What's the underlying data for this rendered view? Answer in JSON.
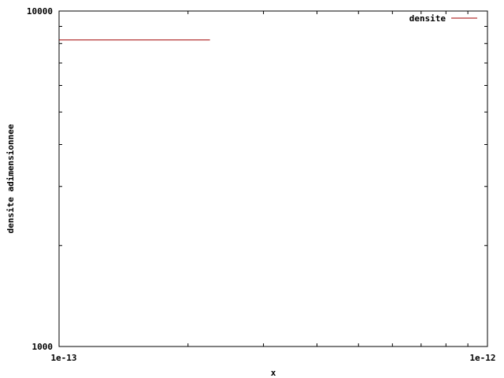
{
  "chart_data": {
    "type": "line",
    "title": "",
    "xlabel": "x",
    "ylabel": "densite adimensionnee",
    "x_scale": "log",
    "y_scale": "log",
    "xlim": [
      1e-13,
      1e-12
    ],
    "ylim": [
      1000,
      10000
    ],
    "x_tick_labels": [
      "1e-13",
      "1e-12"
    ],
    "y_tick_labels": [
      "1000",
      "10000"
    ],
    "grid": false,
    "legend_position": "top-right",
    "series": [
      {
        "name": "densite",
        "color": "#a00000",
        "x": [
          1e-13,
          2.25e-13
        ],
        "y": [
          8200,
          8200
        ]
      }
    ]
  }
}
